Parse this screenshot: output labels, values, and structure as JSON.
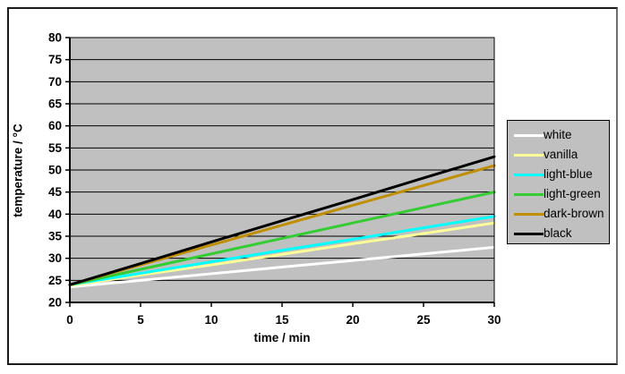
{
  "chart_data": {
    "type": "line",
    "title": "",
    "xlabel": "time / min",
    "ylabel": "temperature / °C",
    "x": [
      0,
      5,
      10,
      15,
      20,
      25,
      30
    ],
    "xlim": [
      0,
      30
    ],
    "ylim": [
      20,
      80
    ],
    "xticks": [
      0,
      5,
      10,
      15,
      20,
      25,
      30
    ],
    "yticks": [
      20,
      25,
      30,
      35,
      40,
      45,
      50,
      55,
      60,
      65,
      70,
      75,
      80
    ],
    "grid": "horizontal",
    "plot_bg": "#c0c0c0",
    "gridline_color": "#000000",
    "legend_position": "right",
    "legend_bg": "#c0c0c0",
    "series": [
      {
        "name": "white",
        "color": "#ffffff",
        "values": [
          23.5,
          25.0,
          26.5,
          28.0,
          29.5,
          31.0,
          32.5
        ]
      },
      {
        "name": "vanilla",
        "color": "#ffff99",
        "values": [
          23.8,
          26.2,
          28.5,
          30.9,
          33.3,
          35.6,
          38.0
        ]
      },
      {
        "name": "light-blue",
        "color": "#00ffff",
        "values": [
          24.0,
          26.6,
          29.2,
          31.8,
          34.3,
          36.9,
          39.5
        ]
      },
      {
        "name": "light-green",
        "color": "#33cc33",
        "values": [
          24.0,
          27.5,
          31.0,
          34.5,
          38.0,
          41.5,
          45.0
        ]
      },
      {
        "name": "dark-brown",
        "color": "#bf8f00",
        "values": [
          24.0,
          28.5,
          33.0,
          37.5,
          42.0,
          46.5,
          51.0
        ]
      },
      {
        "name": "black",
        "color": "#000000",
        "values": [
          24.0,
          28.8,
          33.7,
          38.5,
          43.3,
          48.2,
          53.0
        ]
      }
    ]
  }
}
